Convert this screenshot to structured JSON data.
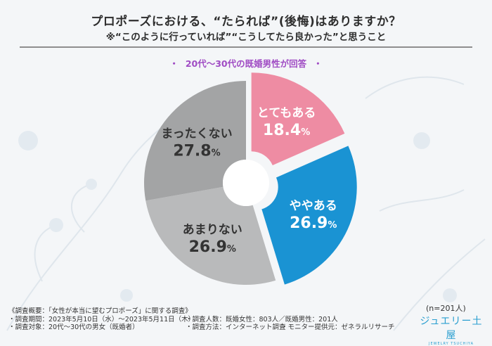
{
  "title": "プロポーズにおける、“たられば”(後悔)はありますか？",
  "subtitle": "※“このように行っていれば”“こうしてたら良かった”と思うこと",
  "respondents": "20代～30代の既婚男性が回答",
  "sample_size": "(n=201人)",
  "footer": {
    "survey_name": "《調査概要：「女性が本当に望むプロポーズ」に関する調査》",
    "period": "・調査期間：2023年5月10日（水）～2023年5月11日（木）",
    "respondent_count": "・調査人数：既婚女性：803人／既婚男性：201人",
    "target": "・調査対象：20代～30代の男女（既婚者）",
    "method": "・調査方法：インターネット調査",
    "provider": "・モニター提供元：ゼネラルリサーチ"
  },
  "logo": {
    "name": "ジュエリー土屋",
    "sub": "JEWELRY TSUCHIYA"
  },
  "chart_data": {
    "type": "pie",
    "donut": true,
    "exploded_slices": [
      "とてもある",
      "ややある"
    ],
    "categories": [
      "とてもある",
      "ややある",
      "あまりない",
      "まったくない"
    ],
    "values": [
      18.4,
      26.9,
      26.9,
      27.8
    ],
    "unit": "%",
    "colors": [
      "#ee8ca3",
      "#1a93d3",
      "#b9babb",
      "#a3a4a5"
    ]
  }
}
